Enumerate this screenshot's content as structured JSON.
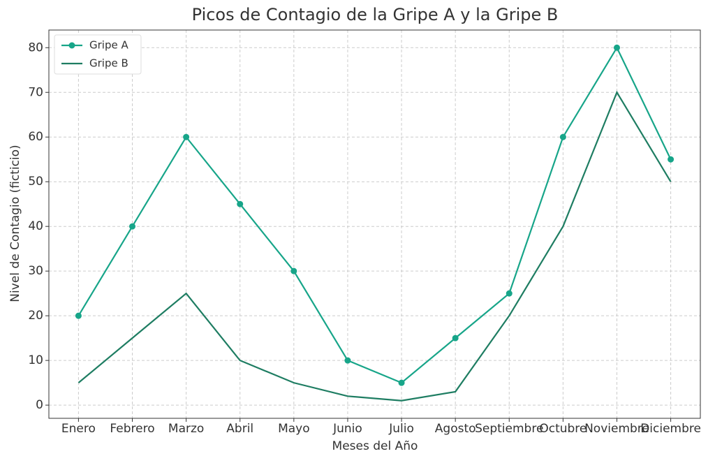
{
  "chart_data": {
    "type": "line",
    "title": "Picos de Contagio de la Gripe A y la Gripe B",
    "x_label": "Meses del Año",
    "y_label": "Nivel de Contagio (ficticio)",
    "categories": [
      "Enero",
      "Febrero",
      "Marzo",
      "Abril",
      "Mayo",
      "Junio",
      "Julio",
      "Agosto",
      "Septiembre",
      "Octubre",
      "Noviembre",
      "Diciembre"
    ],
    "series": [
      {
        "name": "Gripe A",
        "color": "#17a589",
        "marker": true,
        "values": [
          20,
          40,
          60,
          45,
          30,
          10,
          5,
          15,
          25,
          60,
          80,
          55
        ]
      },
      {
        "name": "Gripe B",
        "color": "#1e7d62",
        "marker": false,
        "values": [
          5,
          15,
          25,
          10,
          5,
          2,
          1,
          3,
          20,
          40,
          70,
          50
        ]
      }
    ],
    "ylim": [
      -2.95,
      83.95
    ],
    "yticks": [
      0,
      10,
      20,
      30,
      40,
      50,
      60,
      70,
      80
    ],
    "grid": true,
    "legend": "upper-left"
  }
}
